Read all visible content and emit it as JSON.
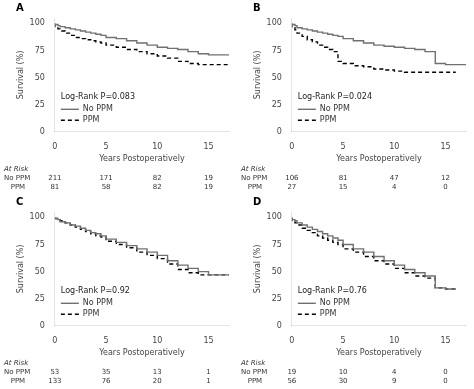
{
  "chart_data": [
    {
      "type": "step",
      "title": "A",
      "xlabel": "Years Postoperatively",
      "ylabel": "Survival (%)",
      "annotations": [
        "Log-Rank P=0.083"
      ],
      "series": [
        {
          "name": "No PPM",
          "color": "#707070",
          "line_style": "solid",
          "x": [
            0,
            0.3,
            0.5,
            1,
            1.5,
            2,
            2.5,
            3,
            3.5,
            4,
            4.5,
            5,
            6,
            7,
            8,
            9,
            10,
            11,
            12,
            13,
            14,
            15,
            16,
            17
          ],
          "values": [
            100,
            99,
            98,
            97,
            96,
            95,
            94,
            93,
            92,
            91,
            90,
            89,
            87,
            86,
            84,
            82,
            80,
            78,
            77,
            76,
            74,
            72,
            71,
            71
          ]
        },
        {
          "name": "PPM",
          "color": "#000000",
          "line_style": "dashed",
          "x": [
            0,
            0.3,
            0.5,
            1,
            1.5,
            2,
            2.5,
            3,
            3.5,
            4,
            4.5,
            5,
            6,
            7,
            8,
            9,
            10,
            11,
            12,
            13,
            14,
            15,
            16,
            17
          ],
          "values": [
            100,
            97,
            95,
            93,
            91,
            89,
            87,
            86,
            85,
            84,
            83,
            82,
            80,
            78,
            76,
            74,
            72,
            70,
            68,
            65,
            63,
            62,
            62,
            62
          ]
        }
      ],
      "at_risk": {
        "title": "At Risk",
        "x": [
          0,
          5,
          10,
          15
        ],
        "rows": [
          {
            "name": "No PPM",
            "values": [
              211,
              171,
              82,
              19
            ]
          },
          {
            "name": "   PPM",
            "values": [
              81,
              58,
              82,
              19
            ]
          }
        ]
      },
      "xlim": [
        0,
        17
      ],
      "xticks": [
        0,
        5,
        10,
        15
      ],
      "ylim": [
        0,
        105
      ],
      "yticks": [
        0,
        25,
        50,
        75,
        100
      ],
      "grid": false,
      "legend": "lower left"
    },
    {
      "type": "step",
      "title": "B",
      "xlabel": "Years Postoperatively",
      "ylabel": "Survival (%)",
      "annotations": [
        "Log-Rank P=0.024"
      ],
      "series": [
        {
          "name": "No PPM",
          "color": "#707070",
          "line_style": "solid",
          "x": [
            0,
            0.3,
            0.5,
            1,
            1.5,
            2,
            2.5,
            3,
            3.5,
            4,
            4.5,
            5,
            6,
            7,
            8,
            9,
            10,
            11,
            12,
            13,
            14,
            15,
            15.5,
            16,
            17
          ],
          "values": [
            100,
            99,
            98,
            96,
            95,
            94,
            93,
            92,
            91,
            90,
            89,
            88,
            86,
            84,
            82,
            80,
            79,
            78,
            77,
            76,
            74,
            63,
            62,
            62,
            62
          ]
        },
        {
          "name": "PPM",
          "color": "#000000",
          "line_style": "dashed",
          "x": [
            0,
            0.3,
            0.5,
            1,
            1.5,
            2,
            2.5,
            3,
            3.5,
            4,
            4.5,
            5,
            6,
            7,
            8,
            9,
            10,
            11,
            12,
            13,
            14,
            15,
            16
          ],
          "values": [
            100,
            96,
            94,
            91,
            88,
            85,
            83,
            80,
            78,
            76,
            74,
            65,
            63,
            61,
            60,
            58,
            57,
            56,
            55,
            55,
            55,
            55,
            55
          ]
        }
      ],
      "at_risk": {
        "title": "At Risk",
        "x": [
          0,
          5,
          10,
          15
        ],
        "rows": [
          {
            "name": "No PPM",
            "values": [
              106,
              81,
              47,
              12
            ]
          },
          {
            "name": "   PPM",
            "values": [
              27,
              15,
              4,
              0
            ]
          }
        ]
      },
      "xlim": [
        0,
        17
      ],
      "xticks": [
        0,
        5,
        10,
        15
      ],
      "ylim": [
        0,
        105
      ],
      "yticks": [
        0,
        25,
        50,
        75,
        100
      ],
      "grid": false,
      "legend": "lower left"
    },
    {
      "type": "step",
      "title": "C",
      "xlabel": "Years Postoperatively",
      "ylabel": "Survival (%)",
      "annotations": [
        "Log-Rank P=0.92"
      ],
      "series": [
        {
          "name": "No PPM",
          "color": "#707070",
          "line_style": "solid",
          "x": [
            0,
            0.3,
            0.5,
            1,
            1.5,
            2,
            2.5,
            3,
            3.5,
            4,
            4.5,
            5,
            6,
            7,
            8,
            9,
            10,
            11,
            12,
            13,
            14,
            15,
            16,
            17
          ],
          "values": [
            100,
            99,
            98,
            96,
            95,
            93,
            92,
            90,
            88,
            86,
            85,
            83,
            80,
            77,
            74,
            71,
            68,
            65,
            60,
            56,
            53,
            50,
            47,
            47
          ]
        },
        {
          "name": "PPM",
          "color": "#000000",
          "line_style": "dashed",
          "x": [
            0,
            0.3,
            0.5,
            1,
            1.5,
            2,
            2.5,
            3,
            3.5,
            4,
            4.5,
            5,
            6,
            7,
            8,
            9,
            10,
            11,
            12,
            13,
            14,
            15,
            16,
            17
          ],
          "values": [
            100,
            99,
            98,
            97,
            95,
            93,
            91,
            89,
            87,
            85,
            83,
            82,
            78,
            75,
            72,
            68,
            65,
            62,
            57,
            52,
            49,
            47,
            47,
            47
          ]
        }
      ],
      "at_risk": {
        "title": "At Risk",
        "x": [
          0,
          5,
          10,
          15
        ],
        "rows": [
          {
            "name": "No PPM",
            "values": [
              53,
              35,
              13,
              1
            ]
          },
          {
            "name": "   PPM",
            "values": [
              133,
              76,
              20,
              1
            ]
          }
        ]
      },
      "xlim": [
        0,
        17
      ],
      "xticks": [
        0,
        5,
        10,
        15
      ],
      "ylim": [
        0,
        105
      ],
      "yticks": [
        0,
        25,
        50,
        75,
        100
      ],
      "grid": false,
      "legend": "lower left"
    },
    {
      "type": "step",
      "title": "D",
      "xlabel": "Years Postoperatively",
      "ylabel": "Survival (%)",
      "annotations": [
        "Log-Rank P=0.76"
      ],
      "series": [
        {
          "name": "No PPM",
          "color": "#707070",
          "line_style": "solid",
          "x": [
            0,
            0.3,
            0.5,
            1,
            1.5,
            2,
            2.5,
            3,
            3.5,
            4,
            4.5,
            5,
            6,
            7,
            8,
            9,
            10,
            11,
            12,
            13,
            14,
            15,
            15.5,
            16
          ],
          "values": [
            100,
            98,
            97,
            95,
            93,
            91,
            89,
            87,
            85,
            83,
            81,
            79,
            75,
            71,
            68,
            64,
            60,
            56,
            52,
            49,
            46,
            35,
            34,
            34
          ]
        },
        {
          "name": "PPM",
          "color": "#000000",
          "line_style": "dashed",
          "x": [
            0,
            0.3,
            0.5,
            1,
            1.5,
            2,
            2.5,
            3,
            3.5,
            4,
            4.5,
            5,
            6,
            7,
            8,
            9,
            10,
            11,
            12,
            13,
            14,
            15,
            15.5,
            16
          ],
          "values": [
            100,
            97,
            95,
            93,
            90,
            88,
            86,
            83,
            81,
            79,
            77,
            75,
            71,
            68,
            64,
            60,
            57,
            53,
            49,
            46,
            44,
            35,
            34,
            34
          ]
        }
      ],
      "at_risk": {
        "title": "At Risk",
        "x": [
          0,
          5,
          10,
          15
        ],
        "rows": [
          {
            "name": "No PPM",
            "values": [
              19,
              10,
              4,
              0
            ]
          },
          {
            "name": "   PPM",
            "values": [
              56,
              30,
              9,
              0
            ]
          }
        ]
      },
      "xlim": [
        0,
        17
      ],
      "xticks": [
        0,
        5,
        10,
        15
      ],
      "ylim": [
        0,
        105
      ],
      "yticks": [
        0,
        25,
        50,
        75,
        100
      ],
      "grid": false,
      "legend": "lower left"
    }
  ]
}
